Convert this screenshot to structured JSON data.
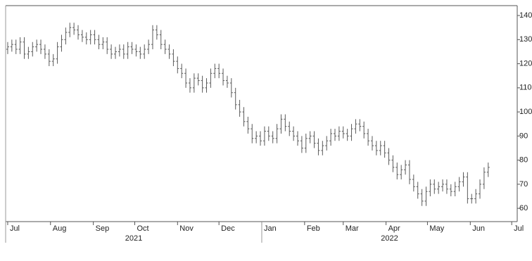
{
  "chart_data": {
    "type": "ohlc",
    "color": "#5a5a5a",
    "open": [
      126,
      127,
      128,
      126,
      129,
      124,
      125,
      127,
      128,
      126,
      124,
      121,
      122,
      127,
      130,
      133,
      135,
      134,
      132,
      131,
      130,
      132,
      130,
      128,
      129,
      126,
      124,
      125,
      126,
      124,
      127,
      126,
      125,
      124,
      126,
      128,
      134,
      132,
      128,
      126,
      124,
      121,
      118,
      116,
      112,
      110,
      114,
      113,
      110,
      112,
      116,
      118,
      116,
      113,
      112,
      108,
      103,
      100,
      96,
      93,
      89,
      90,
      88,
      92,
      90,
      89,
      93,
      97,
      94,
      92,
      90,
      88,
      85,
      89,
      90,
      87,
      84,
      86,
      88,
      91,
      90,
      92,
      91,
      90,
      93,
      95,
      94,
      91,
      88,
      86,
      84,
      86,
      83,
      80,
      77,
      74,
      76,
      78,
      72,
      69,
      66,
      63,
      67,
      70,
      68,
      69,
      70,
      68,
      67,
      69,
      71,
      73,
      64,
      64,
      66,
      70,
      75
    ],
    "high": [
      129,
      130,
      130,
      131,
      131,
      127,
      129,
      130,
      130,
      128,
      126,
      124,
      129,
      132,
      135,
      137,
      137,
      136,
      134,
      133,
      134,
      134,
      132,
      131,
      131,
      128,
      127,
      128,
      128,
      129,
      129,
      128,
      127,
      128,
      130,
      136,
      136,
      134,
      130,
      128,
      126,
      123,
      120,
      118,
      114,
      116,
      116,
      115,
      114,
      118,
      120,
      120,
      118,
      115,
      114,
      110,
      105,
      102,
      98,
      95,
      92,
      92,
      94,
      94,
      92,
      95,
      99,
      99,
      96,
      94,
      92,
      90,
      91,
      92,
      92,
      89,
      88,
      90,
      93,
      93,
      94,
      94,
      93,
      95,
      97,
      97,
      96,
      93,
      90,
      88,
      88,
      88,
      85,
      82,
      79,
      78,
      80,
      80,
      74,
      71,
      68,
      69,
      72,
      72,
      71,
      72,
      72,
      70,
      71,
      73,
      75,
      75,
      66,
      68,
      72,
      77,
      79
    ],
    "low": [
      124,
      125,
      124,
      124,
      122,
      122,
      123,
      125,
      124,
      122,
      119,
      119,
      120,
      125,
      128,
      131,
      132,
      130,
      129,
      128,
      128,
      128,
      126,
      126,
      124,
      122,
      122,
      123,
      122,
      122,
      124,
      123,
      122,
      122,
      124,
      126,
      130,
      126,
      124,
      122,
      119,
      116,
      114,
      110,
      108,
      108,
      111,
      108,
      108,
      110,
      114,
      114,
      111,
      110,
      106,
      101,
      98,
      94,
      91,
      87,
      87,
      86,
      86,
      88,
      87,
      87,
      91,
      92,
      90,
      88,
      86,
      83,
      83,
      87,
      85,
      82,
      82,
      84,
      86,
      88,
      88,
      89,
      88,
      88,
      91,
      92,
      89,
      86,
      84,
      82,
      82,
      81,
      78,
      75,
      72,
      72,
      74,
      70,
      67,
      64,
      61,
      61,
      65,
      66,
      66,
      67,
      66,
      65,
      65,
      67,
      69,
      62,
      62,
      62,
      64,
      68,
      73
    ],
    "close": [
      127,
      128,
      126,
      129,
      124,
      125,
      127,
      128,
      126,
      124,
      121,
      122,
      127,
      130,
      133,
      135,
      134,
      132,
      131,
      130,
      132,
      130,
      128,
      129,
      126,
      124,
      125,
      126,
      124,
      127,
      126,
      125,
      124,
      126,
      128,
      134,
      132,
      128,
      126,
      124,
      121,
      118,
      116,
      112,
      110,
      114,
      113,
      110,
      112,
      116,
      118,
      116,
      113,
      112,
      108,
      103,
      100,
      96,
      93,
      89,
      90,
      88,
      92,
      90,
      89,
      93,
      97,
      94,
      92,
      90,
      88,
      85,
      89,
      90,
      87,
      84,
      86,
      88,
      91,
      90,
      92,
      91,
      90,
      93,
      95,
      94,
      91,
      88,
      86,
      84,
      86,
      83,
      80,
      77,
      74,
      76,
      78,
      72,
      69,
      66,
      63,
      67,
      70,
      68,
      69,
      70,
      68,
      67,
      69,
      71,
      73,
      64,
      64,
      66,
      70,
      75,
      77
    ],
    "ylim": [
      54.5,
      144.1
    ],
    "yticks": [
      60,
      70,
      80,
      90,
      100,
      110,
      120,
      130,
      140
    ],
    "xlim": [
      -0.5,
      123
    ],
    "xticks": [
      {
        "value": 0,
        "label": "Jul"
      },
      {
        "value": 10.33,
        "label": "Aug"
      },
      {
        "value": 20.67,
        "label": "Sep"
      },
      {
        "value": 30.67,
        "label": "Oct"
      },
      {
        "value": 41,
        "label": "Nov"
      },
      {
        "value": 51,
        "label": "Dec"
      },
      {
        "value": 61.33,
        "label": "Jan"
      },
      {
        "value": 71.67,
        "label": "Feb"
      },
      {
        "value": 81,
        "label": "Mar"
      },
      {
        "value": 91.33,
        "label": "Apr"
      },
      {
        "value": 101.33,
        "label": "May"
      },
      {
        "value": 111.67,
        "label": "Jun"
      },
      {
        "value": 121.67,
        "label": "Jul"
      }
    ],
    "years": [
      "2021",
      "2022"
    ]
  }
}
